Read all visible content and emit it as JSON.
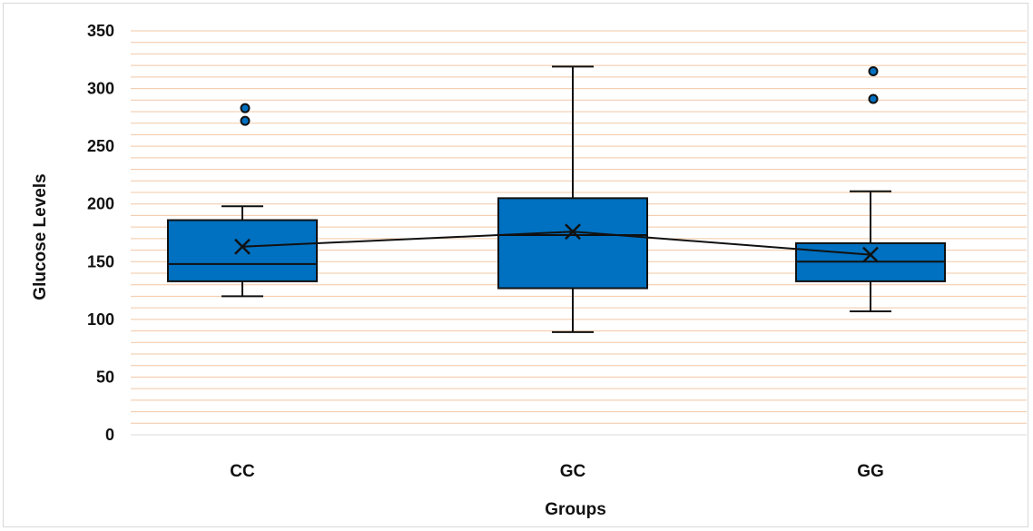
{
  "chart_data": {
    "type": "box",
    "xlabel": "Groups",
    "ylabel": "Glucose Levels",
    "ylim": [
      0,
      350
    ],
    "y_ticks": [
      0,
      50,
      100,
      150,
      200,
      250,
      300,
      350
    ],
    "minor_gridline_step": 10,
    "grid": true,
    "legend": "none",
    "categories": [
      "CC",
      "GC",
      "GG"
    ],
    "boxes": [
      {
        "category": "CC",
        "whisker_low": 120,
        "q1": 133,
        "median": 148,
        "q3": 186,
        "whisker_high": 198,
        "mean": 163,
        "outliers": [
          272,
          283
        ]
      },
      {
        "category": "GC",
        "whisker_low": 89,
        "q1": 127,
        "median": 173,
        "q3": 205,
        "whisker_high": 319,
        "mean": 176,
        "outliers": []
      },
      {
        "category": "GG",
        "whisker_low": 107,
        "q1": 133,
        "median": 150,
        "q3": 166,
        "whisker_high": 211,
        "mean": 156,
        "outliers": [
          291,
          315
        ]
      }
    ],
    "mean_line": true,
    "colors": {
      "box_fill": "#0070C0",
      "box_stroke": "#111111",
      "grid": "#F2C7A5",
      "mean_line": "#111111"
    }
  }
}
